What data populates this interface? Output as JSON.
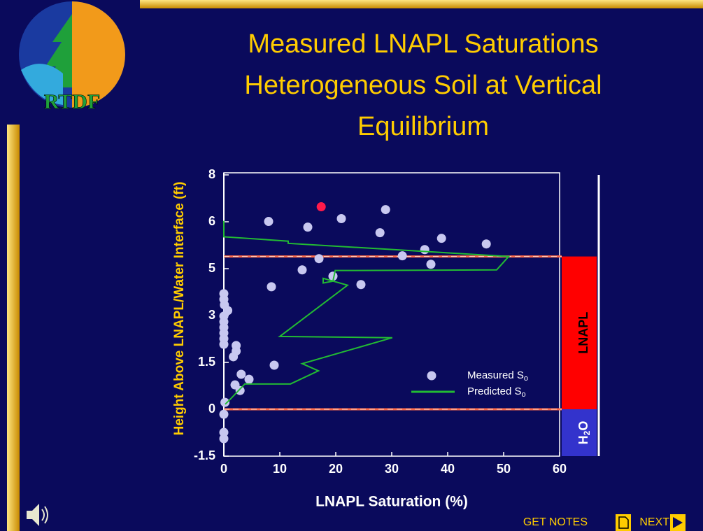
{
  "logo_text": "RTDF",
  "title_lines": [
    "Measured LNAPL Saturations",
    "Heterogeneous Soil at Vertical",
    "Equilibrium"
  ],
  "buttons": {
    "notes": "GET NOTES",
    "next": "NEXT"
  },
  "chart_data": {
    "type": "scatter",
    "xlabel": "LNAPL Saturation (%)",
    "ylabel": "Height Above LNAPL/Water Interface (ft)",
    "xlim": [
      0,
      60
    ],
    "xticks": [
      0,
      10,
      20,
      30,
      40,
      50,
      60
    ],
    "ylim": [
      -1.5,
      7.5
    ],
    "yticks": [
      -1.5,
      0,
      1.5,
      3,
      {
        "value": 4.5,
        "label": "5"
      },
      6,
      {
        "value": 7.5,
        "label": "8"
      }
    ],
    "reference_lines": [
      4.89,
      0
    ],
    "zones": [
      {
        "label": "LNAPL",
        "color": "#ff0000"
      },
      {
        "label_parts": [
          "H",
          "2",
          "O"
        ],
        "color": "#3333cc"
      }
    ],
    "series": [
      {
        "name": "Measured S",
        "name_sub": "o",
        "kind": "points",
        "color": "#c8c8f0",
        "colors": [
          "#ff1a4a",
          "#c8c8f0",
          "#c8c8f0",
          "#c8c8f0",
          "#c8c8f0",
          "#c8c8f0",
          "#c8c8f0",
          "#c8c8f0",
          "#c8c8f0",
          "#c8c8f0",
          "#c8c8f0",
          "#c8c8f0",
          "#c8c8f0",
          "#c8c8f0",
          "#c8c8f0",
          "#c8c8f0",
          "#c8c8f0",
          "#c8c8f0",
          "#c8c8f0",
          "#c8c8f0",
          "#c8c8f0",
          "#c8c8f0",
          "#c8c8f0",
          "#c8c8f0",
          "#c8c8f0",
          "#c8c8f0",
          "#c8c8f0",
          "#c8c8f0",
          "#c8c8f0",
          "#c8c8f0",
          "#c8c8f0",
          "#c8c8f0",
          "#c8c8f0",
          "#c8c8f0",
          "#c8c8f0",
          "#c8c8f0",
          "#c8c8f0",
          "#c8c8f0"
        ],
        "x": [
          17.4,
          8,
          15,
          21,
          28.9,
          27.9,
          38.9,
          46.9,
          35.9,
          31.9,
          17,
          37,
          14,
          19.5,
          24.5,
          8.5,
          9,
          0,
          0,
          0.1,
          0.7,
          0,
          0,
          0,
          0,
          0,
          0,
          2.2,
          2.2,
          1.7,
          3.1,
          4.5,
          2,
          2.9,
          0.2,
          0,
          0,
          0
        ],
        "values": [
          6.48,
          6.01,
          5.83,
          6.1,
          6.39,
          5.65,
          5.47,
          5.29,
          5.11,
          4.91,
          4.82,
          4.64,
          4.46,
          4.26,
          3.99,
          3.92,
          1.41,
          3.7,
          3.52,
          3.34,
          3.16,
          2.98,
          2.8,
          2.62,
          2.44,
          2.26,
          2.08,
          2.04,
          1.86,
          1.68,
          1.12,
          0.96,
          0.78,
          0.6,
          0.22,
          -0.16,
          -0.74,
          -0.94
        ]
      },
      {
        "name": "Predicted S",
        "name_sub": "o",
        "kind": "line",
        "color": "#22bb33",
        "x": [
          0,
          0,
          11.5,
          11.5,
          50.9,
          48.75,
          19.9,
          19.5,
          17.75,
          17.75,
          22.1,
          10,
          30.1,
          14,
          16.9,
          11.9,
          3.75,
          1.25,
          0.25
        ],
        "values": [
          6.03,
          5.52,
          5.38,
          5.31,
          4.89,
          4.46,
          4.44,
          4.1,
          4.04,
          4.19,
          3.97,
          2.33,
          2.29,
          1.46,
          1.23,
          0.81,
          0.81,
          0.34,
          0.16
        ]
      }
    ]
  }
}
